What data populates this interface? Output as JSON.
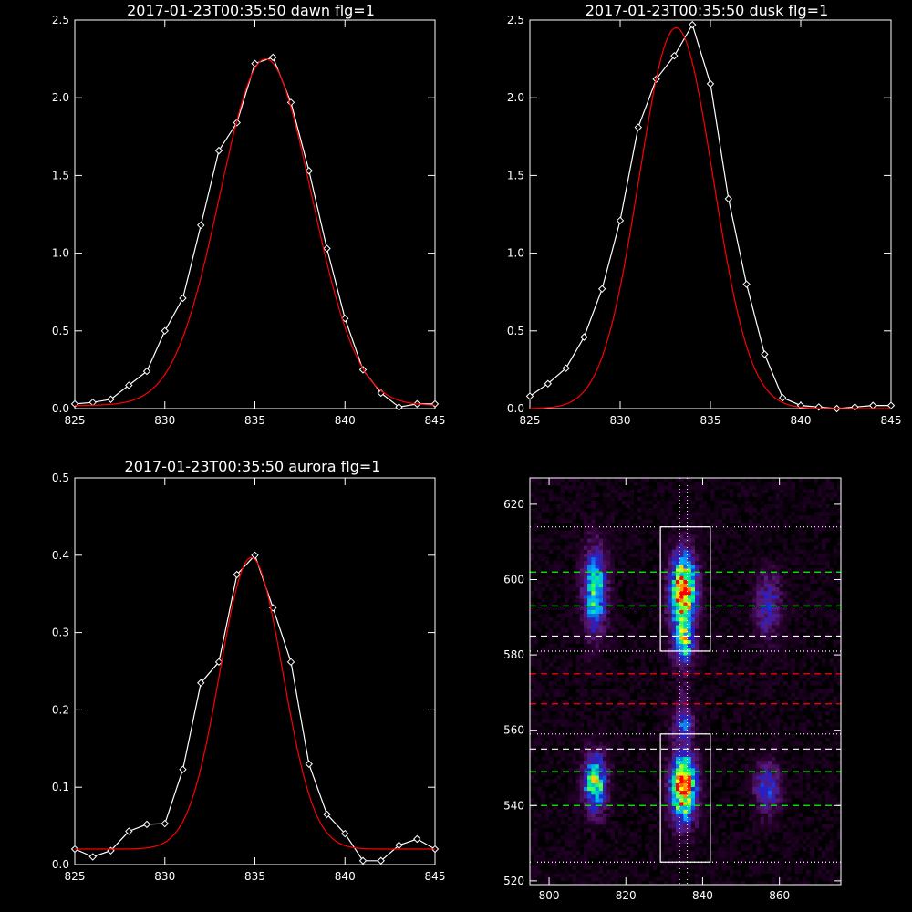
{
  "chart_data": [
    {
      "type": "line",
      "title": "2017-01-23T00:35:50 dawn flg=1",
      "xlim": [
        825,
        845
      ],
      "ylim": [
        0,
        2.5
      ],
      "xticks": [
        825,
        830,
        835,
        840,
        845
      ],
      "yticks": [
        0.0,
        0.5,
        1.0,
        1.5,
        2.0,
        2.5
      ],
      "series": [
        {
          "kind": "data",
          "color": "#ffffff",
          "marker": "diamond",
          "x": [
            825,
            826,
            827,
            828,
            829,
            830,
            831,
            832,
            833,
            834,
            835,
            836,
            837,
            838,
            839,
            840,
            841,
            842,
            843,
            844,
            845
          ],
          "y": [
            0.03,
            0.04,
            0.06,
            0.15,
            0.24,
            0.5,
            0.71,
            1.18,
            1.66,
            1.84,
            2.22,
            2.26,
            1.97,
            1.53,
            1.03,
            0.58,
            0.25,
            0.1,
            0.01,
            0.03,
            0.03
          ]
        },
        {
          "kind": "fit",
          "color": "#ff0000",
          "baseline": 0.02,
          "amplitude": 2.23,
          "center": 835.6,
          "sigma": 2.55
        }
      ]
    },
    {
      "type": "line",
      "title": "2017-01-23T00:35:50 dusk flg=1",
      "xlim": [
        825,
        845
      ],
      "ylim": [
        0,
        2.5
      ],
      "xticks": [
        825,
        830,
        835,
        840,
        845
      ],
      "yticks": [
        0.0,
        0.5,
        1.0,
        1.5,
        2.0,
        2.5
      ],
      "series": [
        {
          "kind": "data",
          "color": "#ffffff",
          "marker": "diamond",
          "x": [
            825,
            826,
            827,
            828,
            829,
            830,
            831,
            832,
            833,
            834,
            835,
            836,
            837,
            838,
            839,
            840,
            841,
            842,
            843,
            844,
            845
          ],
          "y": [
            0.08,
            0.16,
            0.26,
            0.46,
            0.77,
            1.21,
            1.81,
            2.12,
            2.27,
            2.47,
            2.09,
            1.35,
            0.8,
            0.35,
            0.07,
            0.02,
            0.01,
            0.0,
            0.01,
            0.02,
            0.02
          ]
        },
        {
          "kind": "fit",
          "color": "#ff0000",
          "baseline": 0.0,
          "amplitude": 2.45,
          "center": 833.1,
          "sigma": 2.05
        }
      ]
    },
    {
      "type": "line",
      "title": "2017-01-23T00:35:50 aurora flg=1",
      "xlim": [
        825,
        845
      ],
      "ylim": [
        0,
        0.5
      ],
      "xticks": [
        825,
        830,
        835,
        840,
        845
      ],
      "yticks": [
        0.0,
        0.1,
        0.2,
        0.3,
        0.4,
        0.5
      ],
      "series": [
        {
          "kind": "data",
          "color": "#ffffff",
          "marker": "diamond",
          "x": [
            825,
            826,
            827,
            828,
            829,
            830,
            831,
            832,
            833,
            834,
            835,
            836,
            837,
            838,
            839,
            840,
            841,
            842,
            843,
            844,
            845
          ],
          "y": [
            0.02,
            0.01,
            0.018,
            0.043,
            0.052,
            0.053,
            0.123,
            0.235,
            0.262,
            0.375,
            0.4,
            0.332,
            0.262,
            0.13,
            0.065,
            0.04,
            0.005,
            0.005,
            0.025,
            0.033,
            0.02
          ]
        },
        {
          "kind": "fit",
          "color": "#ff0000",
          "baseline": 0.02,
          "amplitude": 0.377,
          "center": 834.8,
          "sigma": 1.75
        }
      ]
    },
    {
      "type": "heatmap",
      "title": "",
      "xlim": [
        795,
        876
      ],
      "ylim": [
        519,
        627
      ],
      "xticks": [
        800,
        820,
        840,
        860
      ],
      "yticks": [
        520,
        540,
        560,
        580,
        600,
        620
      ],
      "colormap": [
        "#000000",
        "#2a0030",
        "#5a1a78",
        "#2020d0",
        "#00b0ff",
        "#00ff70",
        "#ffff00",
        "#ff0000"
      ],
      "blobs": [
        {
          "x": 812,
          "y": 597,
          "sx": 2.2,
          "sy": 8,
          "amp": 0.65
        },
        {
          "x": 812,
          "y": 546,
          "sx": 2.2,
          "sy": 5.5,
          "amp": 0.7
        },
        {
          "x": 835,
          "y": 597,
          "sx": 2.4,
          "sy": 7,
          "amp": 1.0
        },
        {
          "x": 835,
          "y": 545,
          "sx": 2.4,
          "sy": 6.5,
          "amp": 1.0
        },
        {
          "x": 835,
          "y": 583,
          "sx": 2.0,
          "sy": 4,
          "amp": 0.55
        },
        {
          "x": 835,
          "y": 562,
          "sx": 2.0,
          "sy": 3,
          "amp": 0.4
        },
        {
          "x": 857,
          "y": 593,
          "sx": 2.5,
          "sy": 6,
          "amp": 0.35
        },
        {
          "x": 857,
          "y": 545,
          "sx": 2.5,
          "sy": 5,
          "amp": 0.4
        },
        {
          "x": 835,
          "y": 571,
          "sx": 1.5,
          "sy": 3,
          "amp": 0.15
        }
      ],
      "boxes": [
        {
          "x0": 829,
          "x1": 842,
          "y0": 581,
          "y1": 614,
          "color": "#ffffff"
        },
        {
          "x0": 829,
          "x1": 842,
          "y0": 525,
          "y1": 559,
          "color": "#ffffff"
        }
      ],
      "hlines": [
        {
          "y": 614,
          "color": "#ffffff",
          "style": "dotted"
        },
        {
          "y": 602,
          "color": "#00ff00",
          "style": "dashed"
        },
        {
          "y": 593,
          "color": "#00ff00",
          "style": "dashed"
        },
        {
          "y": 585,
          "color": "#ffffff",
          "style": "dashed"
        },
        {
          "y": 581,
          "color": "#ffffff",
          "style": "dotted"
        },
        {
          "y": 575,
          "color": "#ff0000",
          "style": "dashed"
        },
        {
          "y": 567,
          "color": "#ff0000",
          "style": "dashed"
        },
        {
          "y": 559,
          "color": "#ffffff",
          "style": "dotted"
        },
        {
          "y": 555,
          "color": "#ffffff",
          "style": "dashed"
        },
        {
          "y": 549,
          "color": "#00ff00",
          "style": "dashed"
        },
        {
          "y": 540,
          "color": "#00ff00",
          "style": "dashed"
        },
        {
          "y": 525,
          "color": "#ffffff",
          "style": "dotted"
        }
      ],
      "vlines": [
        {
          "x": 834,
          "color": "#ffffff",
          "style": "dotted"
        },
        {
          "x": 836,
          "color": "#ffffff",
          "style": "dotted"
        }
      ]
    }
  ]
}
